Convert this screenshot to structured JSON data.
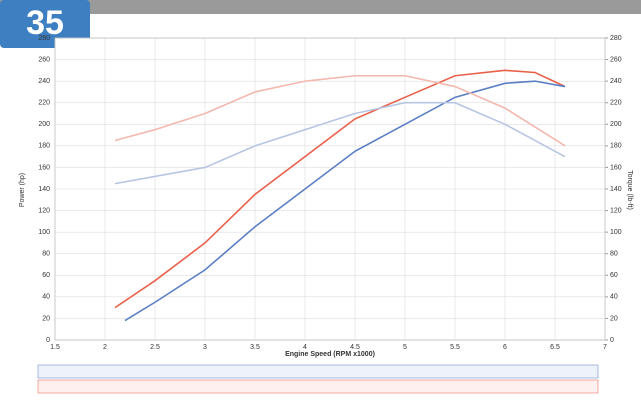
{
  "badge": "35",
  "chart_data": {
    "type": "line",
    "x_label": "Engine Speed (RPM x1000)",
    "y_label": "Power (hp)",
    "y2_label": "Torque (lb-ft)",
    "xlim": [
      1.5,
      7.0
    ],
    "xticks": [
      1.5,
      2.0,
      2.5,
      3.0,
      3.5,
      4.0,
      4.5,
      5.0,
      5.5,
      6.0,
      6.5,
      7.0
    ],
    "ylim": [
      0,
      280
    ],
    "yticks": [
      0,
      20,
      40,
      60,
      80,
      100,
      120,
      140,
      160,
      180,
      200,
      220,
      240,
      260,
      280
    ],
    "y2lim": [
      0,
      280
    ],
    "y2ticks": [
      0,
      20,
      40,
      60,
      80,
      100,
      120,
      140,
      160,
      180,
      200,
      220,
      240,
      260,
      280
    ],
    "grid": true,
    "series": [
      {
        "color": "#e8604a",
        "x": [
          2.1,
          2.5,
          3.0,
          3.5,
          4.0,
          4.5,
          5.0,
          5.5,
          6.0,
          6.3,
          6.6
        ],
        "values": [
          30,
          55,
          90,
          135,
          170,
          205,
          225,
          245,
          250,
          248,
          235
        ]
      },
      {
        "color": "#5b7fc4",
        "x": [
          2.2,
          2.5,
          3.0,
          3.5,
          4.0,
          4.5,
          5.0,
          5.5,
          6.0,
          6.3,
          6.6
        ],
        "values": [
          18,
          35,
          65,
          105,
          140,
          175,
          200,
          225,
          238,
          240,
          235
        ]
      },
      {
        "color": "#f3b8ae",
        "axis": "y2",
        "x": [
          2.1,
          2.5,
          3.0,
          3.5,
          4.0,
          4.5,
          5.0,
          5.5,
          6.0,
          6.6
        ],
        "values": [
          185,
          195,
          210,
          230,
          240,
          245,
          245,
          235,
          215,
          180
        ]
      },
      {
        "color": "#b8c6e4",
        "axis": "y2",
        "x": [
          2.1,
          3.0,
          3.5,
          4.0,
          4.5,
          5.0,
          5.5,
          6.0,
          6.6
        ],
        "values": [
          145,
          160,
          180,
          195,
          210,
          220,
          220,
          200,
          170
        ]
      }
    ]
  }
}
